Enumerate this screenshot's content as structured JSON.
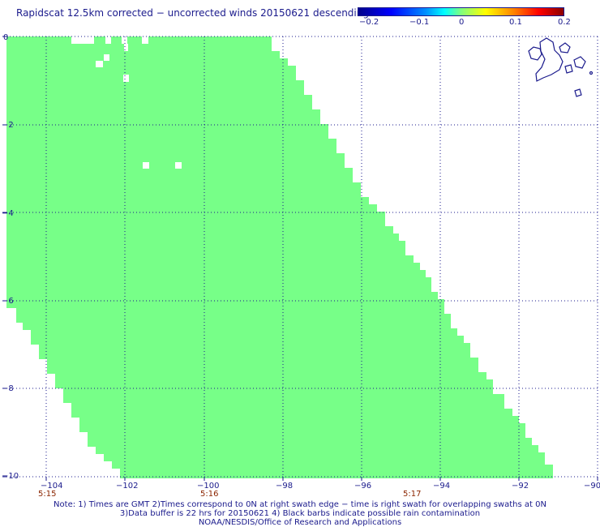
{
  "title": "Rapidscat 12.5km corrected − uncorrected winds 20150621 descending",
  "colorbar": {
    "ticks": [
      "−0.2",
      "−0.1",
      "0",
      "0.1",
      "0.2"
    ]
  },
  "map": {
    "lon_labels": [
      "−104",
      "−102",
      "−100",
      "−98",
      "−96",
      "−94",
      "−92",
      "−90"
    ],
    "lat_labels": [
      "0",
      "−2",
      "−4",
      "−6",
      "−8",
      "−10"
    ],
    "time_labels": [
      "5:15",
      "5:16",
      "5:17"
    ],
    "swath_color": "#77ff88",
    "grid_color": "#1a1a8c",
    "land_outline_color": "#1a1a8c"
  },
  "notes": {
    "line1": "Note: 1) Times are GMT 2)Times correspond to 0N at right swath edge − time is right swath for overlapping swaths at 0N",
    "line2": "3)Data buffer is 22 hrs for 20150621 4) Black barbs indicate possible rain contamination",
    "line3": "NOAA/NESDIS/Office of Research and Applications"
  }
}
